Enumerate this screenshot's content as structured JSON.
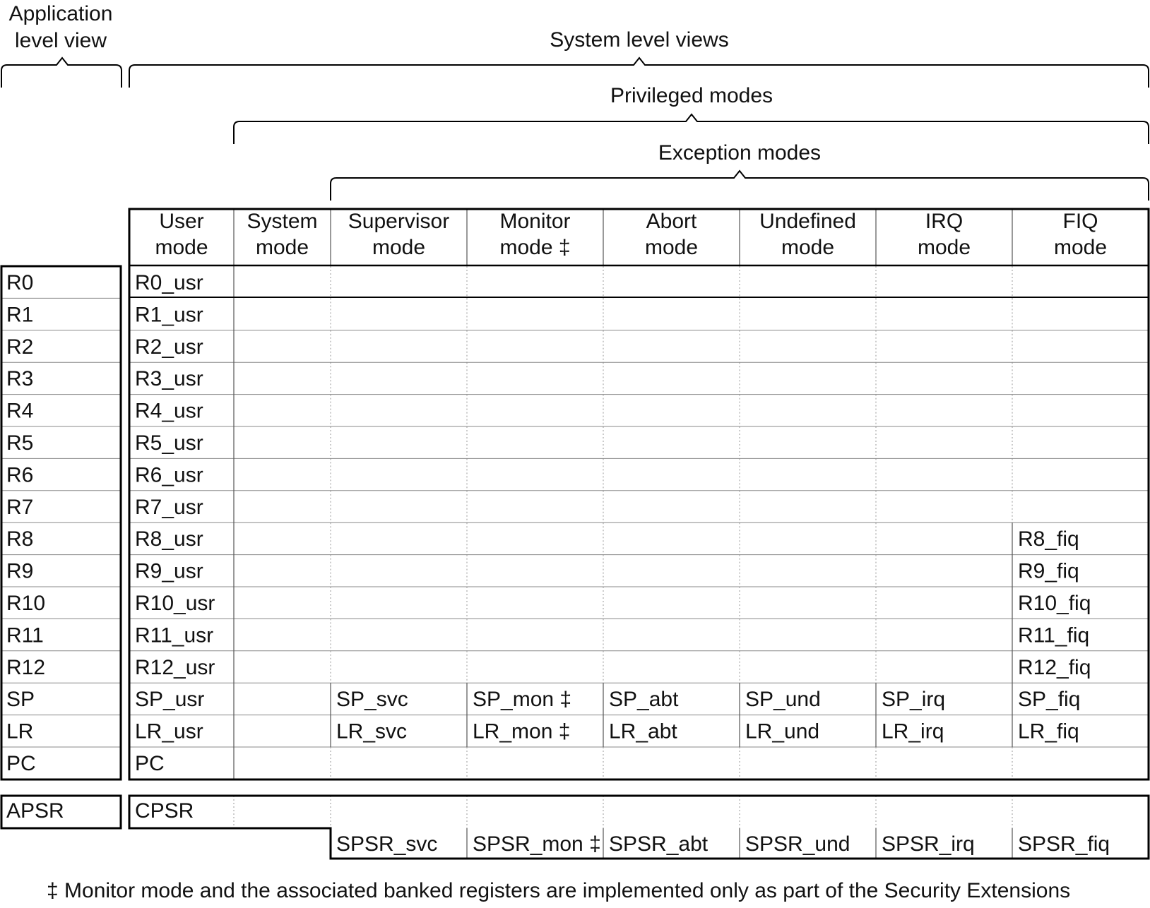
{
  "view_labels": {
    "application": [
      "Application",
      "level view"
    ],
    "system": "System level views",
    "privileged": "Privileged modes",
    "exception": "Exception modes"
  },
  "columns": [
    [
      "User",
      "mode"
    ],
    [
      "System",
      "mode"
    ],
    [
      "Supervisor",
      "mode"
    ],
    [
      "Monitor",
      "mode ‡"
    ],
    [
      "Abort",
      "mode"
    ],
    [
      "Undefined",
      "mode"
    ],
    [
      "IRQ",
      "mode"
    ],
    [
      "FIQ",
      "mode"
    ]
  ],
  "app_registers": [
    "R0",
    "R1",
    "R2",
    "R3",
    "R4",
    "R5",
    "R6",
    "R7",
    "R8",
    "R9",
    "R10",
    "R11",
    "R12",
    "SP",
    "LR",
    "PC"
  ],
  "banked_rows": [
    [
      "R0_usr",
      "",
      "",
      "",
      "",
      "",
      "",
      ""
    ],
    [
      "R1_usr",
      "",
      "",
      "",
      "",
      "",
      "",
      ""
    ],
    [
      "R2_usr",
      "",
      "",
      "",
      "",
      "",
      "",
      ""
    ],
    [
      "R3_usr",
      "",
      "",
      "",
      "",
      "",
      "",
      ""
    ],
    [
      "R4_usr",
      "",
      "",
      "",
      "",
      "",
      "",
      ""
    ],
    [
      "R5_usr",
      "",
      "",
      "",
      "",
      "",
      "",
      ""
    ],
    [
      "R6_usr",
      "",
      "",
      "",
      "",
      "",
      "",
      ""
    ],
    [
      "R7_usr",
      "",
      "",
      "",
      "",
      "",
      "",
      ""
    ],
    [
      "R8_usr",
      "",
      "",
      "",
      "",
      "",
      "",
      "R8_fiq"
    ],
    [
      "R9_usr",
      "",
      "",
      "",
      "",
      "",
      "",
      "R9_fiq"
    ],
    [
      "R10_usr",
      "",
      "",
      "",
      "",
      "",
      "",
      "R10_fiq"
    ],
    [
      "R11_usr",
      "",
      "",
      "",
      "",
      "",
      "",
      "R11_fiq"
    ],
    [
      "R12_usr",
      "",
      "",
      "",
      "",
      "",
      "",
      "R12_fiq"
    ],
    [
      "SP_usr",
      "",
      "SP_svc",
      "SP_mon ‡",
      "SP_abt",
      "SP_und",
      "SP_irq",
      "SP_fiq"
    ],
    [
      "LR_usr",
      "",
      "LR_svc",
      "LR_mon ‡",
      "LR_abt",
      "LR_und",
      "LR_irq",
      "LR_fiq"
    ],
    [
      "PC",
      "",
      "",
      "",
      "",
      "",
      "",
      ""
    ]
  ],
  "status": {
    "app": "APSR",
    "cpsr": "CPSR",
    "spsr": [
      "SPSR_svc",
      "SPSR_mon ‡",
      "SPSR_abt",
      "SPSR_und",
      "SPSR_irq",
      "SPSR_fiq"
    ]
  },
  "footnote": "‡ Monitor mode and the associated banked registers are implemented only as part of the Security Extensions"
}
